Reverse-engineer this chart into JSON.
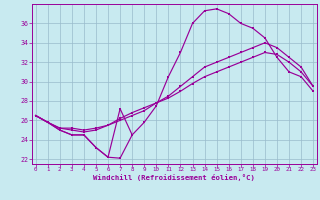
{
  "xlabel": "Windchill (Refroidissement éolien,°C)",
  "xlim": [
    -0.3,
    23.3
  ],
  "ylim": [
    21.5,
    38.0
  ],
  "xticks": [
    0,
    1,
    2,
    3,
    4,
    5,
    6,
    7,
    8,
    9,
    10,
    11,
    12,
    13,
    14,
    15,
    16,
    17,
    18,
    19,
    20,
    21,
    22,
    23
  ],
  "yticks": [
    22,
    24,
    26,
    28,
    30,
    32,
    34,
    36
  ],
  "background_color": "#c8eaf0",
  "grid_color": "#99bbcc",
  "line_color": "#990099",
  "curve_upper_x": [
    0,
    1,
    2,
    3,
    4,
    5,
    6,
    7,
    8,
    9,
    10,
    11,
    12,
    13,
    14,
    15,
    16,
    17,
    18,
    19,
    20,
    21,
    22,
    23
  ],
  "curve_upper_y": [
    26.5,
    25.8,
    25.0,
    24.5,
    24.5,
    23.2,
    22.2,
    22.1,
    24.5,
    25.8,
    27.5,
    30.5,
    33.0,
    36.0,
    37.3,
    37.5,
    37.0,
    36.0,
    35.5,
    34.5,
    32.5,
    31.0,
    30.5,
    29.0
  ],
  "curve_mid_x": [
    0,
    1,
    2,
    3,
    4,
    5,
    6,
    7,
    8,
    9,
    10,
    11,
    12,
    13,
    14,
    15,
    16,
    17,
    18,
    19,
    20,
    21,
    22,
    23
  ],
  "curve_mid_y": [
    26.5,
    25.8,
    25.2,
    25.2,
    25.0,
    25.2,
    25.5,
    26.0,
    26.5,
    27.0,
    27.8,
    28.5,
    29.5,
    30.5,
    31.5,
    32.0,
    32.5,
    33.0,
    33.5,
    34.0,
    33.5,
    32.5,
    31.5,
    29.5
  ],
  "curve_low_x": [
    0,
    1,
    2,
    3,
    4,
    5,
    6,
    7,
    8,
    9,
    10,
    11,
    12,
    13,
    14,
    15,
    16,
    17,
    18,
    19,
    20,
    21,
    22,
    23
  ],
  "curve_low_y": [
    26.5,
    25.8,
    25.2,
    25.0,
    24.8,
    25.0,
    25.5,
    26.2,
    26.8,
    27.3,
    27.8,
    28.3,
    29.0,
    29.8,
    30.5,
    31.0,
    31.5,
    32.0,
    32.5,
    33.0,
    32.8,
    32.0,
    31.0,
    29.5
  ],
  "curve_notch_x": [
    0,
    1,
    2,
    3,
    4,
    5,
    6,
    7,
    8
  ],
  "curve_notch_y": [
    26.5,
    25.8,
    25.0,
    24.5,
    24.5,
    23.2,
    22.2,
    27.2,
    24.5
  ]
}
